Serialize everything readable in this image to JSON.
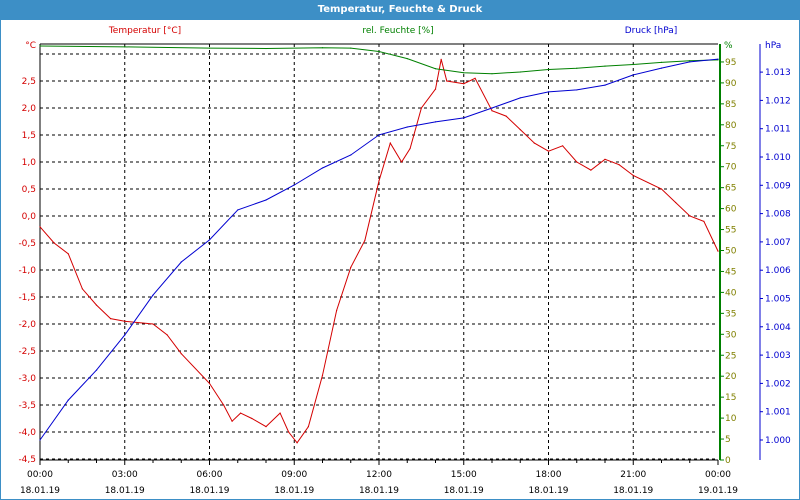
{
  "window": {
    "title": "Temperatur, Feuchte & Druck"
  },
  "colors": {
    "temperature": "#d40000",
    "humidity": "#008000",
    "pressure": "#0000d0",
    "title_bar": "#3d8fc6"
  },
  "chart_data": {
    "type": "line",
    "title": "Temperatur, Feuchte & Druck",
    "x_hours": [
      0,
      1,
      2,
      3,
      4,
      5,
      6,
      7,
      8,
      9,
      10,
      11,
      12,
      13,
      14,
      15,
      16,
      17,
      18,
      19,
      20,
      21,
      22,
      23,
      24
    ],
    "x_ticks": [
      {
        "time": "00:00",
        "date": "18.01.19"
      },
      {
        "time": "03:00",
        "date": "18.01.19"
      },
      {
        "time": "06:00",
        "date": "18.01.19"
      },
      {
        "time": "09:00",
        "date": "18.01.19"
      },
      {
        "time": "12:00",
        "date": "18.01.19"
      },
      {
        "time": "15:00",
        "date": "18.01.19"
      },
      {
        "time": "18:00",
        "date": "18.01.19"
      },
      {
        "time": "21:00",
        "date": "18.01.19"
      },
      {
        "time": "00:00",
        "date": "19.01.19"
      }
    ],
    "grid": true,
    "series": [
      {
        "name": "Temperatur [°C]",
        "axis": "left",
        "unit": "°C",
        "ylim": [
          -4.5,
          3.0
        ],
        "points": [
          [
            0,
            -0.2
          ],
          [
            0.5,
            -0.5
          ],
          [
            1,
            -0.7
          ],
          [
            1.5,
            -1.35
          ],
          [
            2,
            -1.65
          ],
          [
            2.5,
            -1.9
          ],
          [
            3,
            -1.95
          ],
          [
            4,
            -2.0
          ],
          [
            4.5,
            -2.2
          ],
          [
            5,
            -2.55
          ],
          [
            6,
            -3.1
          ],
          [
            6.5,
            -3.5
          ],
          [
            6.8,
            -3.8
          ],
          [
            7.1,
            -3.65
          ],
          [
            7.5,
            -3.75
          ],
          [
            8,
            -3.9
          ],
          [
            8.5,
            -3.65
          ],
          [
            8.8,
            -4.0
          ],
          [
            9.1,
            -4.2
          ],
          [
            9.5,
            -3.9
          ],
          [
            10,
            -2.95
          ],
          [
            10.5,
            -1.75
          ],
          [
            11,
            -0.95
          ],
          [
            11.5,
            -0.45
          ],
          [
            12,
            0.65
          ],
          [
            12.4,
            1.35
          ],
          [
            12.8,
            1.0
          ],
          [
            13.1,
            1.25
          ],
          [
            13.5,
            2.0
          ],
          [
            14,
            2.35
          ],
          [
            14.2,
            2.9
          ],
          [
            14.4,
            2.5
          ],
          [
            15,
            2.45
          ],
          [
            15.4,
            2.55
          ],
          [
            16,
            1.95
          ],
          [
            16.5,
            1.85
          ],
          [
            17,
            1.6
          ],
          [
            17.5,
            1.35
          ],
          [
            18,
            1.2
          ],
          [
            18.5,
            1.3
          ],
          [
            19,
            1.0
          ],
          [
            19.5,
            0.85
          ],
          [
            20,
            1.05
          ],
          [
            20.5,
            0.95
          ],
          [
            21,
            0.75
          ],
          [
            22,
            0.5
          ],
          [
            22.5,
            0.25
          ],
          [
            23,
            0.0
          ],
          [
            23.5,
            -0.1
          ],
          [
            24,
            -0.65
          ]
        ],
        "ticks": [
          "2,5",
          "2,0",
          "1,5",
          "1,0",
          "0,5",
          "0,0",
          "-0,5",
          "-1,0",
          "-1,5",
          "-2,0",
          "-2,5",
          "-3,0",
          "-3,5",
          "-4,0",
          "-4,5"
        ]
      },
      {
        "name": "rel. Feuchte [%]",
        "axis": "right",
        "unit": "%",
        "ylim": [
          0,
          100
        ],
        "points": [
          [
            0,
            98.8
          ],
          [
            3,
            98.6
          ],
          [
            6,
            98.3
          ],
          [
            8,
            98.2
          ],
          [
            10,
            98.4
          ],
          [
            11,
            98.3
          ],
          [
            12,
            97.5
          ],
          [
            13,
            95.8
          ],
          [
            14,
            93.4
          ],
          [
            15,
            92.4
          ],
          [
            16,
            92.2
          ],
          [
            17,
            92.6
          ],
          [
            18,
            93.2
          ],
          [
            19,
            93.5
          ],
          [
            20,
            94.0
          ],
          [
            21,
            94.4
          ],
          [
            22,
            94.9
          ],
          [
            23,
            95.3
          ],
          [
            24,
            95.5
          ]
        ],
        "ticks": [
          "95",
          "90",
          "85",
          "80",
          "75",
          "70",
          "65",
          "60",
          "55",
          "50",
          "45",
          "40",
          "35",
          "30",
          "25",
          "20",
          "15",
          "10",
          "5",
          "0"
        ]
      },
      {
        "name": "Druck [hPa]",
        "axis": "far-right",
        "unit": "hPa",
        "ylim": [
          999.43,
          1013.56
        ],
        "points": [
          [
            0,
            1000.0
          ],
          [
            1,
            1001.41
          ],
          [
            2,
            1002.47
          ],
          [
            3,
            1003.71
          ],
          [
            4,
            1005.12
          ],
          [
            5,
            1006.29
          ],
          [
            6,
            1007.07
          ],
          [
            7,
            1008.13
          ],
          [
            8,
            1008.48
          ],
          [
            9,
            1009.01
          ],
          [
            10,
            1009.61
          ],
          [
            11,
            1010.07
          ],
          [
            12,
            1010.78
          ],
          [
            13,
            1011.06
          ],
          [
            14,
            1011.24
          ],
          [
            15,
            1011.38
          ],
          [
            16,
            1011.73
          ],
          [
            17,
            1012.09
          ],
          [
            18,
            1012.3
          ],
          [
            19,
            1012.37
          ],
          [
            20,
            1012.54
          ],
          [
            21,
            1012.9
          ],
          [
            22,
            1013.14
          ],
          [
            23,
            1013.36
          ],
          [
            24,
            1013.46
          ]
        ],
        "ticks": [
          "1.013",
          "1.012",
          "1.011",
          "1.010",
          "1.009",
          "1.008",
          "1.007",
          "1.006",
          "1.005",
          "1.004",
          "1.003",
          "1.002",
          "1.001",
          "1.000"
        ]
      }
    ],
    "legend": {
      "temperature": "Temperatur [°C]",
      "humidity": "rel. Feuchte [%]",
      "pressure": "Druck [hPa]"
    },
    "axis_units": {
      "left": "°C",
      "right": "%",
      "far_right": "hPa"
    }
  }
}
